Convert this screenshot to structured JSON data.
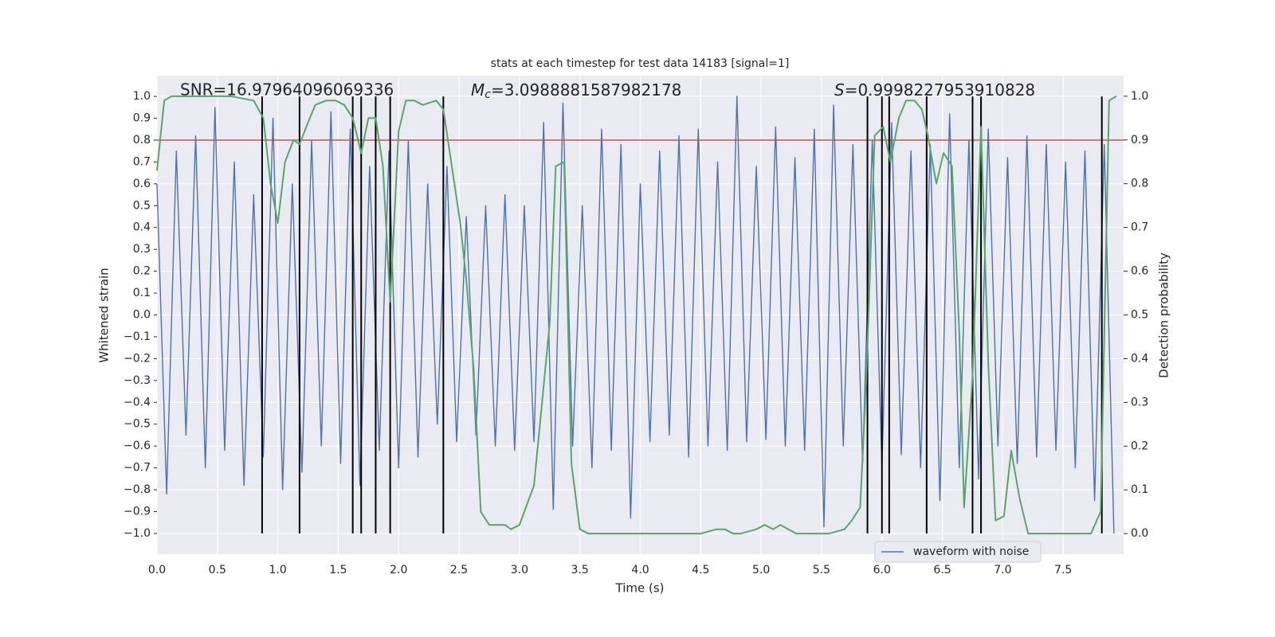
{
  "chart_data": {
    "type": "line",
    "title": "stats at each timestep for test data 14183 [signal=1]",
    "xlabel": "Time (s)",
    "ylabel": "Whitened strain",
    "y2label": "Detection probability",
    "annotations": [
      {
        "text": "SNR=16.97964096069336"
      },
      {
        "symbol": "M",
        "subscript": "c",
        "rest": "=3.0988881587982178"
      },
      {
        "symbol": "S",
        "rest": "=0.9998227953910828"
      }
    ],
    "xlim": [
      0,
      8.0
    ],
    "ylim": [
      -1.095,
      1.095
    ],
    "y2lim": [
      -0.047,
      1.047
    ],
    "xticks": [
      {
        "value": 0,
        "label": "0.0"
      },
      0.5,
      {
        "value": 1,
        "label": "1.0"
      },
      1.5,
      {
        "value": 2,
        "label": "2.0"
      },
      2.5,
      {
        "value": 3,
        "label": "3.0"
      },
      3.5,
      {
        "value": 4,
        "label": "4.0"
      },
      4.5,
      {
        "value": 5,
        "label": "5.0"
      },
      5.5,
      {
        "value": 6,
        "label": "6.0"
      },
      6.5,
      {
        "value": 7,
        "label": "7.0"
      },
      7.5
    ],
    "yticks": [
      {
        "value": -1,
        "label": "−1.0"
      },
      {
        "value": -0.9,
        "label": "−0.9"
      },
      {
        "value": -0.8,
        "label": "−0.8"
      },
      {
        "value": -0.7,
        "label": "−0.7"
      },
      {
        "value": -0.6,
        "label": "−0.6"
      },
      {
        "value": -0.5,
        "label": "−0.5"
      },
      {
        "value": -0.4,
        "label": "−0.4"
      },
      {
        "value": -0.3,
        "label": "−0.3"
      },
      {
        "value": -0.2,
        "label": "−0.2"
      },
      {
        "value": -0.1,
        "label": "−0.1"
      },
      {
        "value": 0,
        "label": "0.0"
      },
      0.1,
      0.2,
      0.3,
      0.4,
      0.5,
      0.6,
      0.7,
      0.8,
      0.9,
      {
        "value": 1,
        "label": "1.0"
      }
    ],
    "y2ticks": [
      {
        "value": 0,
        "label": "0.0"
      },
      0.1,
      0.2,
      0.3,
      0.4,
      0.5,
      0.6,
      0.7,
      0.8,
      0.9,
      {
        "value": 1,
        "label": "1.0"
      }
    ],
    "grid": true,
    "legend": "lower right",
    "hline": {
      "value": 0.8,
      "color": "#c44e52"
    },
    "vlines": {
      "color": "#000000",
      "range": [
        -1,
        1
      ],
      "x": [
        0.87,
        1.18,
        1.62,
        1.69,
        1.81,
        1.93,
        2.37,
        5.88,
        6.0,
        6.06,
        6.37,
        6.75,
        6.82,
        7.82
      ]
    },
    "series": [
      {
        "name": "waveform with noise",
        "color": "#4c72b0",
        "x": [
          0,
          0.08,
          0.16,
          0.24,
          0.32,
          0.4,
          0.48,
          0.56,
          0.64,
          0.72,
          0.8,
          0.88,
          0.96,
          1.04,
          1.12,
          1.2,
          1.28,
          1.36,
          1.44,
          1.52,
          1.6,
          1.68,
          1.76,
          1.84,
          1.92,
          2.0,
          2.08,
          2.16,
          2.24,
          2.32,
          2.4,
          2.48,
          2.56,
          2.64,
          2.72,
          2.8,
          2.88,
          2.96,
          3.04,
          3.12,
          3.2,
          3.28,
          3.36,
          3.44,
          3.52,
          3.6,
          3.68,
          3.76,
          3.84,
          3.92,
          4.0,
          4.08,
          4.16,
          4.24,
          4.32,
          4.4,
          4.48,
          4.56,
          4.64,
          4.72,
          4.8,
          4.88,
          4.96,
          5.04,
          5.12,
          5.2,
          5.28,
          5.36,
          5.44,
          5.52,
          5.6,
          5.68,
          5.76,
          5.84,
          5.92,
          6.0,
          6.08,
          6.16,
          6.24,
          6.32,
          6.4,
          6.48,
          6.56,
          6.64,
          6.72,
          6.8,
          6.88,
          6.96,
          7.04,
          7.12,
          7.2,
          7.28,
          7.36,
          7.44,
          7.52,
          7.6,
          7.68,
          7.76,
          7.84,
          7.92
        ],
        "values": [
          0.6,
          -0.82,
          0.75,
          -0.55,
          0.82,
          -0.7,
          0.95,
          -0.62,
          0.7,
          -0.78,
          0.55,
          -0.65,
          0.9,
          -0.8,
          0.6,
          -0.72,
          0.8,
          -0.6,
          0.93,
          -0.68,
          0.85,
          -0.78,
          0.68,
          -0.62,
          0.75,
          -0.7,
          0.8,
          -0.65,
          0.6,
          -0.5,
          0.68,
          -0.58,
          0.45,
          -0.55,
          0.5,
          -0.6,
          0.55,
          -0.62,
          0.5,
          -0.58,
          0.88,
          -0.89,
          0.97,
          -0.6,
          0.5,
          -0.7,
          0.85,
          -0.62,
          0.78,
          -0.93,
          0.6,
          -0.58,
          0.75,
          -0.55,
          0.82,
          -0.65,
          0.85,
          -0.6,
          0.7,
          -0.62,
          1.0,
          -0.58,
          0.68,
          -0.57,
          0.86,
          -0.6,
          0.72,
          -0.62,
          0.85,
          -0.97,
          0.96,
          -0.6,
          0.78,
          -0.68,
          0.8,
          -0.7,
          0.88,
          -0.64,
          0.75,
          -0.7,
          0.78,
          -0.85,
          0.92,
          -0.7,
          0.8,
          -0.75,
          0.85,
          -0.6,
          0.72,
          -0.68,
          0.82,
          -0.65,
          0.78,
          -0.62,
          0.7,
          -0.7,
          0.75,
          -0.85,
          0.78,
          -1.0
        ]
      },
      {
        "color": "#55a868",
        "axis": "y2",
        "x": [
          0.0,
          0.06,
          0.12,
          0.61,
          0.8,
          0.88,
          0.94,
          1.0,
          1.06,
          1.13,
          1.18,
          1.25,
          1.31,
          1.4,
          1.48,
          1.55,
          1.62,
          1.69,
          1.75,
          1.81,
          1.87,
          1.93,
          2.0,
          2.06,
          2.13,
          2.2,
          2.31,
          2.37,
          2.44,
          2.51,
          2.56,
          2.62,
          2.68,
          2.75,
          2.81,
          2.88,
          2.93,
          3.0,
          3.12,
          3.18,
          3.25,
          3.3,
          3.37,
          3.43,
          3.5,
          3.57,
          3.71,
          3.97,
          4.3,
          4.5,
          4.63,
          4.7,
          4.77,
          4.83,
          4.96,
          5.03,
          5.1,
          5.16,
          5.29,
          5.56,
          5.69,
          5.75,
          5.82,
          5.87,
          5.94,
          6.01,
          6.07,
          6.14,
          6.2,
          6.27,
          6.33,
          6.38,
          6.45,
          6.51,
          6.58,
          6.64,
          6.68,
          6.75,
          6.82,
          6.88,
          6.94,
          7.01,
          7.07,
          7.14,
          7.21,
          7.27,
          7.34,
          7.4,
          7.53,
          7.73,
          7.81,
          7.88,
          7.94
        ],
        "values": [
          0.83,
          0.99,
          1.0,
          1.0,
          0.99,
          0.95,
          0.8,
          0.71,
          0.85,
          0.9,
          0.89,
          0.94,
          0.98,
          0.99,
          0.99,
          0.98,
          0.95,
          0.87,
          0.95,
          0.95,
          0.84,
          0.53,
          0.92,
          0.99,
          0.99,
          0.98,
          0.99,
          0.97,
          0.84,
          0.71,
          0.58,
          0.38,
          0.05,
          0.02,
          0.02,
          0.02,
          0.01,
          0.02,
          0.11,
          0.28,
          0.48,
          0.84,
          0.85,
          0.16,
          0.01,
          0.0,
          0.0,
          0.0,
          0.0,
          0.0,
          0.01,
          0.01,
          0.0,
          0.0,
          0.01,
          0.02,
          0.01,
          0.02,
          0.0,
          0.0,
          0.01,
          0.03,
          0.06,
          0.35,
          0.91,
          0.93,
          0.85,
          0.95,
          0.99,
          0.99,
          0.97,
          0.91,
          0.8,
          0.87,
          0.84,
          0.46,
          0.06,
          0.36,
          0.93,
          0.39,
          0.03,
          0.04,
          0.19,
          0.08,
          0.0,
          0.0,
          0.0,
          0.0,
          0.0,
          0.0,
          0.05,
          0.99,
          1.0
        ]
      }
    ]
  }
}
